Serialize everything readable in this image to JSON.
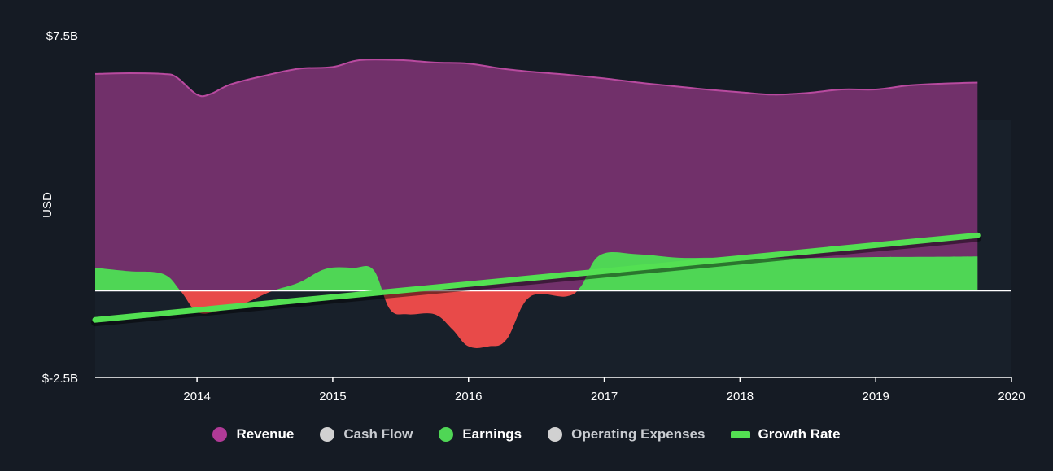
{
  "chart_data": {
    "type": "area",
    "title": "",
    "xlabel": "",
    "ylabel": "USD",
    "ylim": [
      -2.5,
      7.5
    ],
    "xlim": [
      2013.25,
      2020
    ],
    "y_tick_labels": [
      "$7.5B",
      "$-2.5B"
    ],
    "x_ticks": [
      2014,
      2015,
      2016,
      2017,
      2018,
      2019,
      2020
    ],
    "grid": false,
    "legend_position": "bottom-center",
    "colors": {
      "background": "#151b24",
      "plot_band": "#18202a",
      "revenue": "#71306a",
      "revenue_line": "#b84a9f",
      "earnings_positive": "#4fd655",
      "earnings_negative": "#e84a49",
      "growth_rate": "#53e052",
      "zero_line": "#ffffff",
      "axis": "#ffffff"
    },
    "series": [
      {
        "name": "Revenue",
        "x": [
          2013.25,
          2013.5,
          2013.75,
          2013.85,
          2014.0,
          2014.1,
          2014.25,
          2014.5,
          2014.75,
          2015.0,
          2015.2,
          2015.5,
          2015.75,
          2016.0,
          2016.25,
          2016.5,
          2016.75,
          2017.0,
          2017.25,
          2017.5,
          2017.75,
          2018.0,
          2018.25,
          2018.5,
          2018.75,
          2019.0,
          2019.25,
          2019.5,
          2019.75
        ],
        "values": [
          6.3,
          6.32,
          6.3,
          6.2,
          5.7,
          5.72,
          6.0,
          6.25,
          6.45,
          6.5,
          6.7,
          6.7,
          6.63,
          6.6,
          6.45,
          6.35,
          6.27,
          6.17,
          6.05,
          5.95,
          5.85,
          5.77,
          5.7,
          5.75,
          5.85,
          5.85,
          5.97,
          6.02,
          6.05
        ]
      },
      {
        "name": "Earnings",
        "x": [
          2013.25,
          2013.5,
          2013.75,
          2013.88,
          2014.0,
          2014.15,
          2014.35,
          2014.55,
          2014.75,
          2014.95,
          2015.15,
          2015.3,
          2015.42,
          2015.55,
          2015.75,
          2015.88,
          2016.0,
          2016.15,
          2016.28,
          2016.45,
          2016.72,
          2016.83,
          2016.97,
          2017.25,
          2017.55,
          2017.8,
          2018.0,
          2018.5,
          2019.0,
          2019.5,
          2019.75
        ],
        "values": [
          0.68,
          0.58,
          0.5,
          0.0,
          -0.6,
          -0.58,
          -0.35,
          0.0,
          0.25,
          0.65,
          0.68,
          0.62,
          -0.52,
          -0.67,
          -0.67,
          -1.1,
          -1.6,
          -1.6,
          -1.4,
          -0.17,
          -0.15,
          0.15,
          1.05,
          1.07,
          0.97,
          0.97,
          0.95,
          0.96,
          0.99,
          1.0,
          1.01
        ]
      },
      {
        "name": "Growth Rate",
        "x": [
          2013.25,
          2019.75
        ],
        "values": [
          -0.83,
          1.62
        ]
      }
    ],
    "legend": [
      {
        "label": "Revenue",
        "color": "#b03a96",
        "shape": "dot",
        "active": true
      },
      {
        "label": "Cash Flow",
        "color": "#d1d1d1",
        "shape": "dot",
        "active": false
      },
      {
        "label": "Earnings",
        "color": "#4fd655",
        "shape": "dot",
        "active": true
      },
      {
        "label": "Operating Expenses",
        "color": "#d1d1d1",
        "shape": "dot",
        "active": false
      },
      {
        "label": "Growth Rate",
        "color": "#53e052",
        "shape": "bar",
        "active": true
      }
    ]
  }
}
